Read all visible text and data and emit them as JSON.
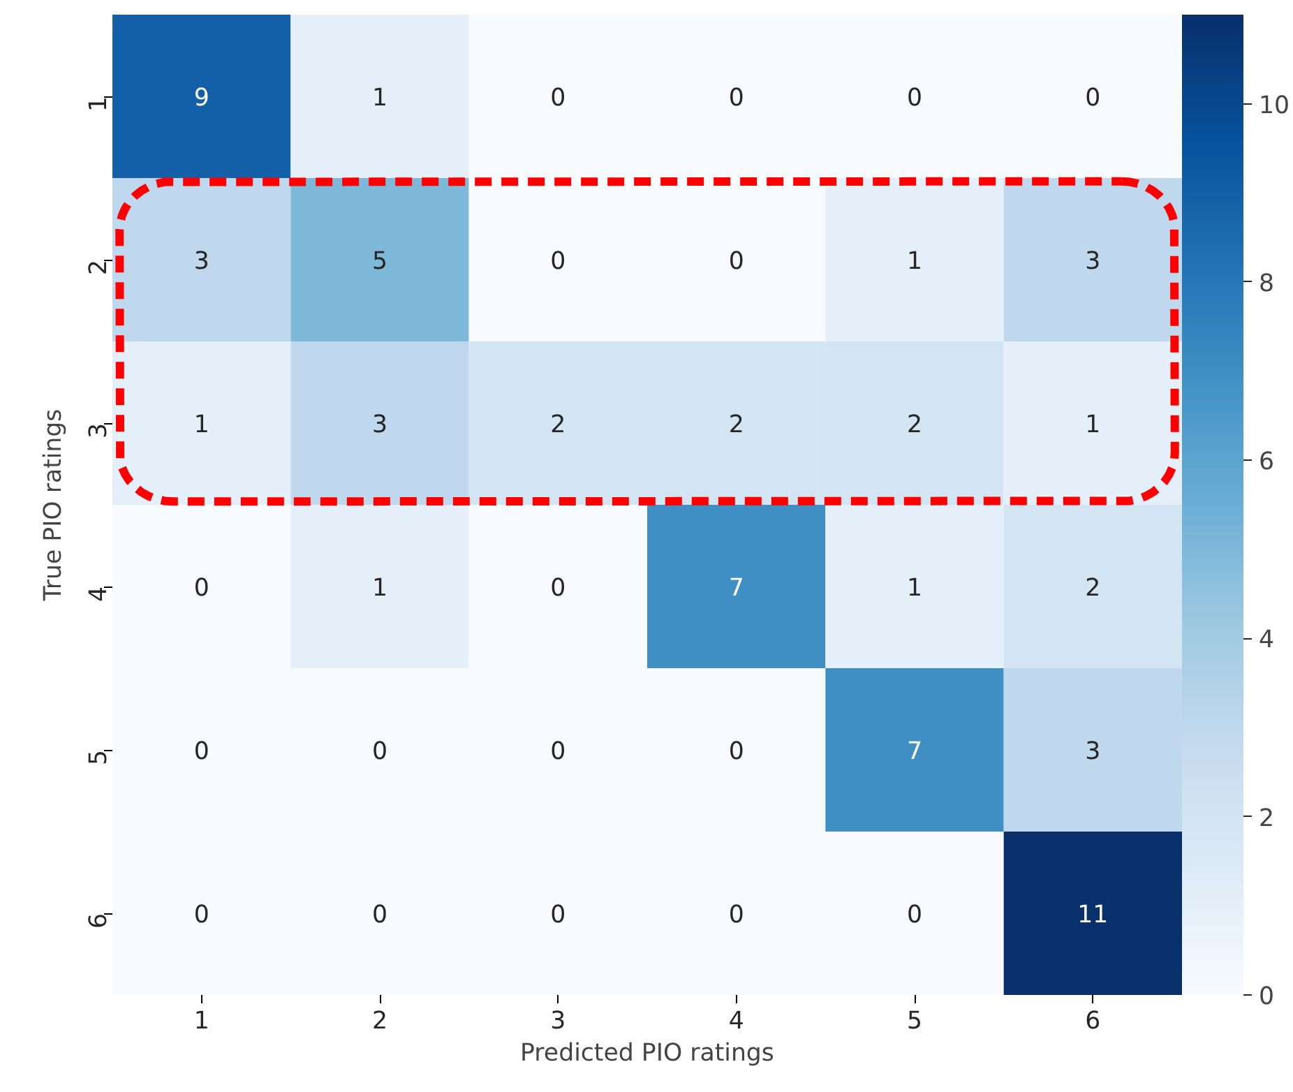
{
  "chart_data": {
    "type": "heatmap",
    "xlabel": "Predicted PIO ratings",
    "ylabel": "True PIO ratings",
    "categories": [
      "1",
      "2",
      "3",
      "4",
      "5",
      "6"
    ],
    "y_categories": [
      "1",
      "2",
      "3",
      "4",
      "5",
      "6"
    ],
    "cells": [
      [
        9,
        1,
        0,
        0,
        0,
        0
      ],
      [
        3,
        5,
        0,
        0,
        1,
        3
      ],
      [
        1,
        3,
        2,
        2,
        2,
        1
      ],
      [
        0,
        1,
        0,
        7,
        1,
        2
      ],
      [
        0,
        0,
        0,
        0,
        7,
        3
      ],
      [
        0,
        0,
        0,
        0,
        0,
        11
      ]
    ],
    "data_labels": true,
    "clim": [
      0,
      11
    ],
    "cticks": [
      0,
      2,
      4,
      6,
      8,
      10
    ]
  }
}
